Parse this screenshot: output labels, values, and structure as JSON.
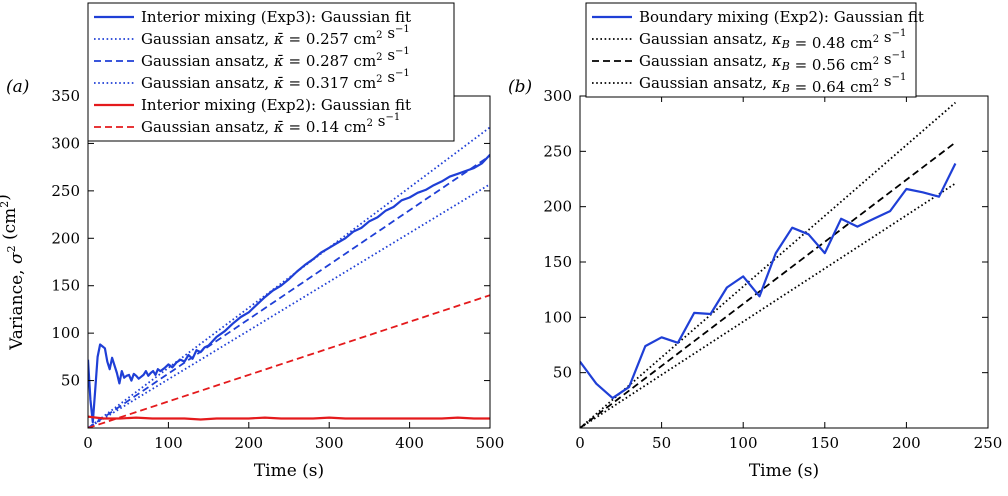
{
  "chart_data": [
    {
      "type": "line",
      "panel_label": "(a)",
      "xlabel": "Time (s)",
      "ylabel": "Variance, σ² (cm²)",
      "xlim": [
        0,
        500
      ],
      "ylim": [
        0,
        350
      ],
      "xticks": [
        "0",
        "100",
        "200",
        "300",
        "400",
        "500"
      ],
      "yticks": [
        "50",
        "100",
        "150",
        "200",
        "250",
        "300",
        "350"
      ],
      "legend_position": "top",
      "series": [
        {
          "name": "Interior mixing (Exp3): Gaussian fit",
          "color": "#1f3fd6",
          "style": "solid",
          "x": [
            0,
            3,
            6,
            9,
            12,
            15,
            18,
            21,
            24,
            27,
            30,
            33,
            36,
            39,
            42,
            45,
            48,
            51,
            54,
            57,
            60,
            63,
            66,
            69,
            72,
            75,
            78,
            81,
            84,
            87,
            90,
            95,
            100,
            105,
            110,
            115,
            120,
            125,
            130,
            135,
            140,
            145,
            150,
            160,
            170,
            180,
            190,
            200,
            210,
            220,
            230,
            240,
            250,
            260,
            270,
            280,
            290,
            300,
            310,
            320,
            330,
            340,
            350,
            360,
            370,
            380,
            390,
            400,
            410,
            420,
            430,
            440,
            450,
            460,
            470,
            480,
            490,
            500
          ],
          "y": [
            72,
            30,
            6,
            40,
            75,
            88,
            86,
            84,
            70,
            62,
            74,
            66,
            58,
            47,
            60,
            53,
            55,
            56,
            50,
            57,
            55,
            52,
            54,
            56,
            60,
            55,
            58,
            60,
            56,
            62,
            60,
            63,
            67,
            64,
            69,
            72,
            70,
            77,
            73,
            82,
            80,
            85,
            87,
            96,
            102,
            110,
            117,
            122,
            130,
            138,
            145,
            150,
            157,
            165,
            172,
            178,
            185,
            190,
            195,
            200,
            207,
            211,
            218,
            222,
            229,
            233,
            240,
            243,
            248,
            251,
            256,
            260,
            265,
            268,
            271,
            274,
            279,
            288
          ]
        },
        {
          "name": "Gaussian ansatz, κ̄ = 0.257 cm² s⁻¹",
          "color": "#1f3fd6",
          "style": "dotted",
          "x": [
            0,
            500
          ],
          "y": [
            0,
            257
          ]
        },
        {
          "name": "Gaussian ansatz, κ̄ = 0.287 cm² s⁻¹",
          "color": "#1f3fd6",
          "style": "dashed",
          "x": [
            0,
            500
          ],
          "y": [
            0,
            287
          ]
        },
        {
          "name": "Gaussian ansatz, κ̄ = 0.317 cm² s⁻¹",
          "color": "#1f3fd6",
          "style": "dotted",
          "x": [
            0,
            500
          ],
          "y": [
            0,
            317
          ]
        },
        {
          "name": "Interior mixing (Exp2): Gaussian fit",
          "color": "#e41a1c",
          "style": "solid",
          "x": [
            0,
            10,
            20,
            40,
            60,
            80,
            100,
            120,
            140,
            160,
            180,
            200,
            220,
            240,
            260,
            280,
            300,
            320,
            340,
            360,
            380,
            400,
            420,
            440,
            460,
            480,
            500
          ],
          "y": [
            12,
            11,
            10,
            10,
            11,
            10,
            10,
            10,
            9,
            10,
            10,
            10,
            11,
            10,
            10,
            10,
            11,
            10,
            10,
            10,
            10,
            10,
            10,
            10,
            11,
            10,
            10
          ]
        },
        {
          "name": "Gaussian ansatz, κ̄ = 0.14 cm² s⁻¹",
          "color": "#e41a1c",
          "style": "dashed",
          "x": [
            0,
            500
          ],
          "y": [
            0,
            140
          ]
        }
      ]
    },
    {
      "type": "line",
      "panel_label": "(b)",
      "xlabel": "Time (s)",
      "ylabel": "",
      "xlim": [
        0,
        250
      ],
      "ylim": [
        0,
        300
      ],
      "xticks": [
        "0",
        "50",
        "100",
        "150",
        "200",
        "250"
      ],
      "yticks": [
        "50",
        "100",
        "150",
        "200",
        "250",
        "300"
      ],
      "legend_position": "top",
      "series": [
        {
          "name": "Boundary mixing (Exp2): Gaussian fit",
          "color": "#1f3fd6",
          "style": "solid",
          "x": [
            0,
            10,
            20,
            30,
            40,
            50,
            60,
            70,
            80,
            90,
            100,
            110,
            120,
            130,
            140,
            150,
            160,
            170,
            180,
            190,
            200,
            210,
            220,
            230
          ],
          "y": [
            60,
            40,
            27,
            37,
            74,
            82,
            77,
            104,
            103,
            127,
            137,
            119,
            158,
            181,
            175,
            158,
            189,
            182,
            189,
            196,
            216,
            213,
            209,
            239
          ]
        },
        {
          "name": "Gaussian ansatz, κ_B = 0.48 cm² s⁻¹",
          "color": "#000000",
          "style": "dotted",
          "x": [
            0,
            230
          ],
          "y": [
            0,
            221
          ]
        },
        {
          "name": "Gaussian ansatz, κ_B = 0.56 cm² s⁻¹",
          "color": "#000000",
          "style": "dashed",
          "x": [
            0,
            230
          ],
          "y": [
            0,
            258
          ]
        },
        {
          "name": "Gaussian ansatz, κ_B = 0.64 cm² s⁻¹",
          "color": "#000000",
          "style": "dotted",
          "x": [
            0,
            230
          ],
          "y": [
            0,
            294
          ]
        }
      ]
    }
  ]
}
